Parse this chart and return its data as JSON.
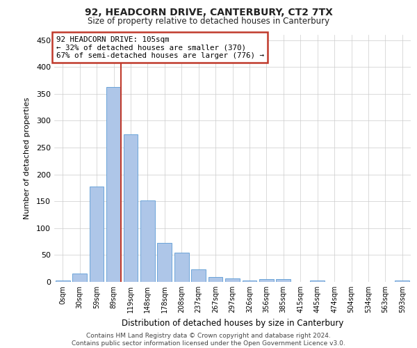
{
  "title": "92, HEADCORN DRIVE, CANTERBURY, CT2 7TX",
  "subtitle": "Size of property relative to detached houses in Canterbury",
  "xlabel": "Distribution of detached houses by size in Canterbury",
  "ylabel": "Number of detached properties",
  "footer1": "Contains HM Land Registry data © Crown copyright and database right 2024.",
  "footer2": "Contains public sector information licensed under the Open Government Licence v3.0.",
  "bar_labels": [
    "0sqm",
    "30sqm",
    "59sqm",
    "89sqm",
    "119sqm",
    "148sqm",
    "178sqm",
    "208sqm",
    "237sqm",
    "267sqm",
    "297sqm",
    "326sqm",
    "356sqm",
    "385sqm",
    "415sqm",
    "445sqm",
    "474sqm",
    "504sqm",
    "534sqm",
    "563sqm",
    "593sqm"
  ],
  "bar_values": [
    2,
    15,
    178,
    363,
    275,
    152,
    72,
    54,
    23,
    9,
    7,
    3,
    5,
    5,
    0,
    2,
    0,
    0,
    0,
    0,
    2
  ],
  "bar_color": "#aec6e8",
  "bar_edgecolor": "#5b9bd5",
  "ylim": [
    0,
    460
  ],
  "yticks": [
    0,
    50,
    100,
    150,
    200,
    250,
    300,
    350,
    400,
    450
  ],
  "vline_x_index": 3,
  "vline_color": "#c0392b",
  "annotation_box_color": "#c0392b",
  "annotation_line1": "92 HEADCORN DRIVE: 105sqm",
  "annotation_line2": "← 32% of detached houses are smaller (370)",
  "annotation_line3": "67% of semi-detached houses are larger (776) →",
  "background_color": "#ffffff",
  "grid_color": "#cccccc"
}
